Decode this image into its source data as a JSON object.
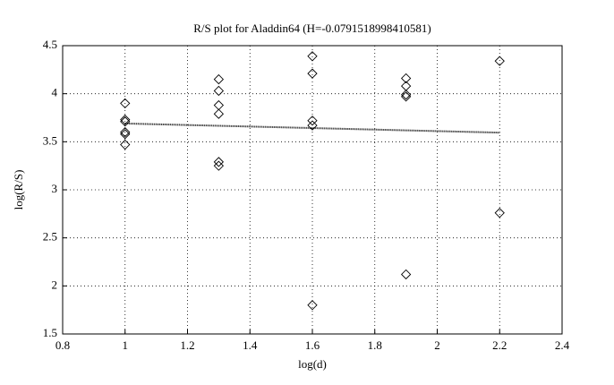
{
  "chart_data": {
    "type": "scatter",
    "title": "R/S plot for Aladdin64 (H=-0.0791518998410581)",
    "xlabel": "log(d)",
    "ylabel": "log(R/S)",
    "xlim": [
      0.8,
      2.4
    ],
    "xticks": [
      0.8,
      1,
      1.2,
      1.4,
      1.6,
      1.8,
      2,
      2.2,
      2.4
    ],
    "ylim": [
      1.5,
      4.5
    ],
    "yticks": [
      1.5,
      2,
      2.5,
      3,
      3.5,
      4,
      4.5
    ],
    "grid": true,
    "series": [
      {
        "style": "marker",
        "marker": "diamond",
        "color": "#000000",
        "x": [
          1,
          1,
          1,
          1,
          1,
          1,
          1.3,
          1.3,
          1.3,
          1.3,
          1.3,
          1.3,
          1.6,
          1.6,
          1.6,
          1.6,
          1.6,
          1.9,
          1.9,
          1.9,
          1.9,
          1.9,
          2.2,
          2.2
        ],
        "values": [
          3.9,
          3.73,
          3.71,
          3.6,
          3.58,
          3.47,
          4.15,
          4.03,
          3.88,
          3.79,
          3.29,
          3.25,
          4.39,
          4.21,
          3.72,
          3.67,
          1.8,
          4.16,
          4.08,
          3.99,
          3.97,
          2.12,
          4.34,
          2.76
        ]
      },
      {
        "style": "line",
        "color": "#000000",
        "x": [
          1,
          2.2
        ],
        "values": [
          3.69,
          3.595
        ]
      }
    ]
  }
}
